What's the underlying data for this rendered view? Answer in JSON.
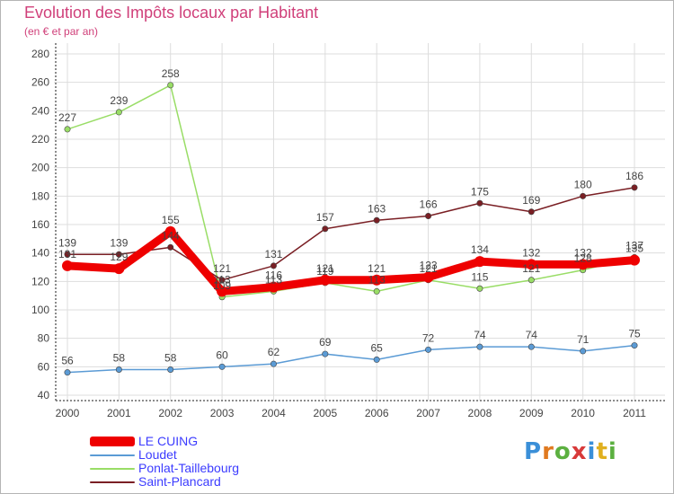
{
  "title": "Evolution des Impôts locaux par Habitant",
  "subtitle": "(en € et par an)",
  "logo": {
    "letters": [
      "P",
      "r",
      "o",
      "x",
      "i",
      "t",
      "i"
    ],
    "colors": [
      "#3a8fd8",
      "#e07a20",
      "#5cb040",
      "#d83a3a",
      "#3a8fd8",
      "#e0b020",
      "#5cb040"
    ]
  },
  "chart_data": {
    "type": "line",
    "x": [
      "2000",
      "2001",
      "2002",
      "2003",
      "2004",
      "2005",
      "2006",
      "2007",
      "2008",
      "2009",
      "2010",
      "2011"
    ],
    "yticks": [
      "40",
      "60",
      "80",
      "100",
      "120",
      "140",
      "160",
      "180",
      "200",
      "220",
      "240",
      "260",
      "280"
    ],
    "ylim": [
      40,
      280
    ],
    "grid": true,
    "series": [
      {
        "name": "LE CUING",
        "color": "#ee0000",
        "values": [
          131,
          129,
          155,
          113,
          116,
          121,
          121,
          123,
          134,
          132,
          132,
          135
        ],
        "labels": [
          "131",
          "129",
          "155",
          "113",
          "116",
          "121",
          "121",
          "123",
          "134",
          "132",
          "132",
          "135"
        ]
      },
      {
        "name": "Loudet",
        "color": "#5b9bd5",
        "values": [
          56,
          58,
          58,
          60,
          62,
          69,
          65,
          72,
          74,
          74,
          71,
          75
        ],
        "labels": [
          "56",
          "58",
          "58",
          "60",
          "62",
          "69",
          "65",
          "72",
          "74",
          "74",
          "71",
          "75"
        ]
      },
      {
        "name": "Ponlat-Taillebourg",
        "color": "#99dd66",
        "values": [
          227,
          239,
          258,
          109,
          113,
          119,
          113,
          121,
          115,
          121,
          128,
          137
        ],
        "labels": [
          "227",
          "239",
          "258",
          "109",
          "113",
          "119",
          "113",
          "121",
          "115",
          "121",
          "128",
          "137"
        ]
      },
      {
        "name": "Saint-Plancard",
        "color": "#7a1f24",
        "values": [
          139,
          139,
          144,
          121,
          131,
          157,
          163,
          166,
          175,
          169,
          180,
          186
        ],
        "labels": [
          "139",
          "139",
          "144",
          "121",
          "131",
          "157",
          "163",
          "166",
          "175",
          "169",
          "180",
          "186"
        ]
      }
    ]
  }
}
